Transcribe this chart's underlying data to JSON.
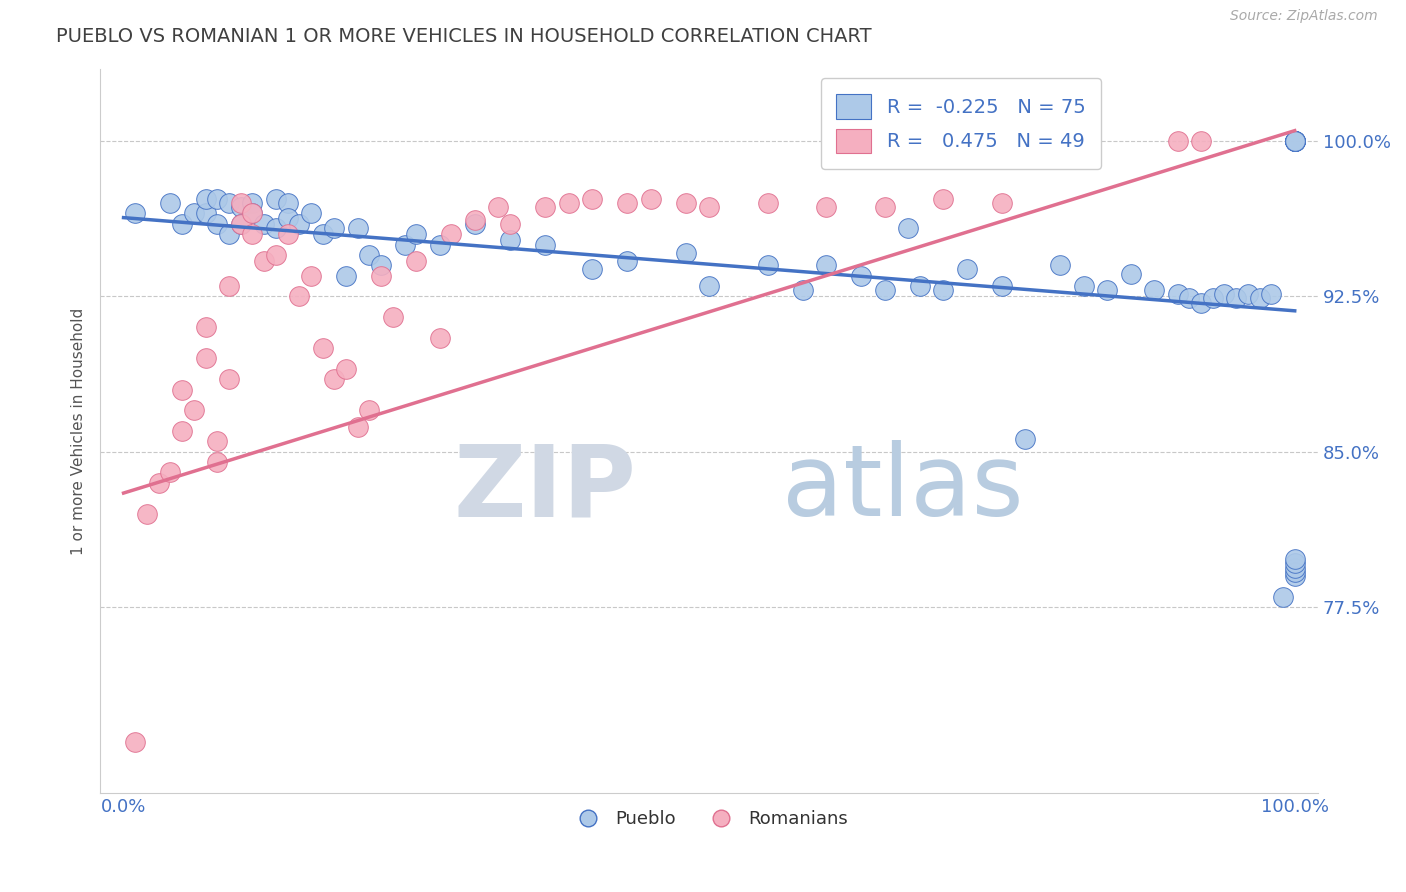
{
  "title": "PUEBLO VS ROMANIAN 1 OR MORE VEHICLES IN HOUSEHOLD CORRELATION CHART",
  "source_text": "Source: ZipAtlas.com",
  "ylabel": "1 or more Vehicles in Household",
  "watermark_zip": "ZIP",
  "watermark_atlas": "atlas",
  "legend_blue_r": "-0.225",
  "legend_blue_n": "75",
  "legend_pink_r": "0.475",
  "legend_pink_n": "49",
  "xlim": [
    -0.02,
    1.02
  ],
  "ylim": [
    0.685,
    1.035
  ],
  "yticks": [
    0.775,
    0.85,
    0.925,
    1.0
  ],
  "ytick_labels": [
    "77.5%",
    "85.0%",
    "92.5%",
    "100.0%"
  ],
  "xtick_labels": [
    "0.0%",
    "100.0%"
  ],
  "xticks": [
    0.0,
    1.0
  ],
  "blue_color": "#adc9e8",
  "pink_color": "#f5afc0",
  "blue_line_color": "#4472c4",
  "pink_line_color": "#e07090",
  "title_color": "#404040",
  "axis_color": "#4472c4",
  "grid_color": "#c8c8c8",
  "blue_scatter_x": [
    0.01,
    0.04,
    0.05,
    0.06,
    0.07,
    0.07,
    0.08,
    0.08,
    0.09,
    0.09,
    0.1,
    0.1,
    0.11,
    0.11,
    0.12,
    0.13,
    0.13,
    0.14,
    0.14,
    0.15,
    0.16,
    0.17,
    0.18,
    0.19,
    0.2,
    0.21,
    0.22,
    0.24,
    0.25,
    0.27,
    0.3,
    0.33,
    0.36,
    0.4,
    0.43,
    0.48,
    0.5,
    0.55,
    0.58,
    0.6,
    0.63,
    0.65,
    0.67,
    0.68,
    0.7,
    0.72,
    0.75,
    0.77,
    0.8,
    0.82,
    0.84,
    0.86,
    0.88,
    0.9,
    0.91,
    0.92,
    0.93,
    0.94,
    0.95,
    0.96,
    0.97,
    0.98,
    0.99,
    1.0,
    1.0,
    1.0,
    1.0,
    1.0,
    1.0,
    1.0,
    1.0,
    1.0,
    1.0,
    1.0,
    1.0
  ],
  "blue_scatter_y": [
    0.965,
    0.97,
    0.96,
    0.965,
    0.965,
    0.972,
    0.972,
    0.96,
    0.97,
    0.955,
    0.968,
    0.96,
    0.97,
    0.965,
    0.96,
    0.972,
    0.958,
    0.97,
    0.963,
    0.96,
    0.965,
    0.955,
    0.958,
    0.935,
    0.958,
    0.945,
    0.94,
    0.95,
    0.955,
    0.95,
    0.96,
    0.952,
    0.95,
    0.938,
    0.942,
    0.946,
    0.93,
    0.94,
    0.928,
    0.94,
    0.935,
    0.928,
    0.958,
    0.93,
    0.928,
    0.938,
    0.93,
    0.856,
    0.94,
    0.93,
    0.928,
    0.936,
    0.928,
    0.926,
    0.924,
    0.922,
    0.924,
    0.926,
    0.924,
    0.926,
    0.924,
    0.926,
    0.78,
    0.79,
    0.792,
    0.794,
    0.796,
    0.798,
    1.0,
    1.0,
    1.0,
    1.0,
    1.0,
    1.0,
    1.0
  ],
  "pink_scatter_x": [
    0.01,
    0.02,
    0.03,
    0.04,
    0.05,
    0.05,
    0.06,
    0.07,
    0.07,
    0.08,
    0.08,
    0.09,
    0.09,
    0.1,
    0.1,
    0.11,
    0.11,
    0.12,
    0.13,
    0.14,
    0.15,
    0.16,
    0.17,
    0.18,
    0.19,
    0.2,
    0.21,
    0.22,
    0.23,
    0.25,
    0.27,
    0.28,
    0.3,
    0.32,
    0.33,
    0.36,
    0.38,
    0.4,
    0.43,
    0.45,
    0.48,
    0.5,
    0.55,
    0.6,
    0.65,
    0.7,
    0.75,
    0.9,
    0.92
  ],
  "pink_scatter_y": [
    0.71,
    0.82,
    0.835,
    0.84,
    0.86,
    0.88,
    0.87,
    0.895,
    0.91,
    0.845,
    0.855,
    0.885,
    0.93,
    0.96,
    0.97,
    0.955,
    0.965,
    0.942,
    0.945,
    0.955,
    0.925,
    0.935,
    0.9,
    0.885,
    0.89,
    0.862,
    0.87,
    0.935,
    0.915,
    0.942,
    0.905,
    0.955,
    0.962,
    0.968,
    0.96,
    0.968,
    0.97,
    0.972,
    0.97,
    0.972,
    0.97,
    0.968,
    0.97,
    0.968,
    0.968,
    0.972,
    0.97,
    1.0,
    1.0
  ],
  "blue_trend_x": [
    0.0,
    1.0
  ],
  "blue_trend_y": [
    0.963,
    0.918
  ],
  "pink_trend_x": [
    0.0,
    1.0
  ],
  "pink_trend_y": [
    0.83,
    1.005
  ]
}
